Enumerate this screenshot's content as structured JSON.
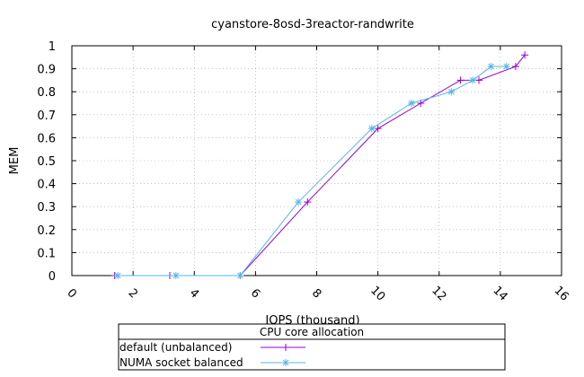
{
  "chart_data": {
    "type": "line",
    "title": "cyanstore-8osd-3reactor-randwrite",
    "xlabel": "IOPS (thousand)",
    "ylabel": "MEM",
    "xlim": [
      0,
      16
    ],
    "ylim": [
      0,
      1
    ],
    "xticks": [
      0,
      2,
      4,
      6,
      8,
      10,
      12,
      14,
      16
    ],
    "yticks": [
      0,
      0.1,
      0.2,
      0.3,
      0.4,
      0.5,
      0.6,
      0.7,
      0.8,
      0.9,
      1
    ],
    "grid": true,
    "legend": {
      "title": "CPU core allocation",
      "placement": "bottom-center"
    },
    "series": [
      {
        "name": "default (unbalanced)",
        "color": "#9400d3",
        "marker": "plus",
        "x": [
          1.4,
          3.2,
          5.5,
          7.7,
          10.0,
          11.4,
          12.7,
          13.3,
          14.5,
          14.8
        ],
        "y": [
          0,
          0,
          0,
          0.32,
          0.64,
          0.75,
          0.85,
          0.85,
          0.91,
          0.96
        ]
      },
      {
        "name": "NUMA socket balanced",
        "color": "#56b4e9",
        "marker": "star",
        "x": [
          1.5,
          3.4,
          5.5,
          7.4,
          9.8,
          11.1,
          12.4,
          13.1,
          13.7,
          14.2
        ],
        "y": [
          0,
          0,
          0,
          0.32,
          0.64,
          0.75,
          0.8,
          0.85,
          0.91,
          0.91
        ]
      }
    ]
  }
}
